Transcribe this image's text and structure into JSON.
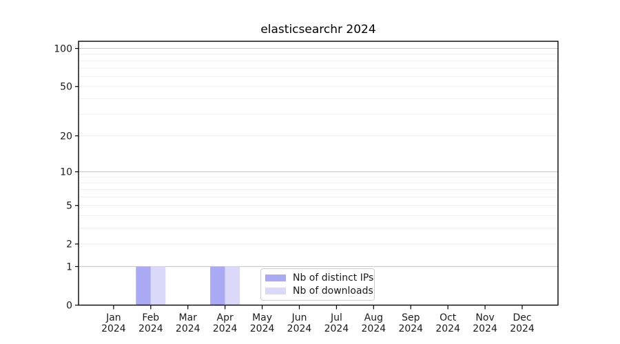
{
  "chart_data": {
    "type": "bar",
    "title": "elasticsearchr 2024",
    "year": "2024",
    "months": [
      "Jan",
      "Feb",
      "Mar",
      "Apr",
      "May",
      "Jun",
      "Jul",
      "Aug",
      "Sep",
      "Oct",
      "Nov",
      "Dec"
    ],
    "series": [
      {
        "name": "Nb of distinct IPs",
        "color": "#a9a9f4",
        "values": [
          0,
          1,
          0,
          1,
          0,
          0,
          0,
          0,
          0,
          0,
          0,
          0
        ]
      },
      {
        "name": "Nb of downloads",
        "color": "#dbd9f9",
        "values": [
          0,
          1,
          0,
          1,
          0,
          0,
          0,
          0,
          0,
          0,
          0,
          0
        ]
      }
    ],
    "y_axis": {
      "scale": "log1p",
      "ticks": [
        0,
        1,
        2,
        5,
        10,
        20,
        50,
        100
      ],
      "max": 114,
      "major_gridlines": [
        1,
        10,
        100
      ],
      "minor_gridlines": [
        2,
        3,
        4,
        5,
        6,
        7,
        8,
        9,
        20,
        30,
        40,
        50,
        60,
        70,
        80,
        90
      ]
    },
    "legend": {
      "position": "lower center"
    },
    "colors": {
      "major_grid": "#c8c8c8",
      "minor_grid": "#eeeeee",
      "axis": "#000000",
      "text": "#1a1a1a"
    }
  }
}
